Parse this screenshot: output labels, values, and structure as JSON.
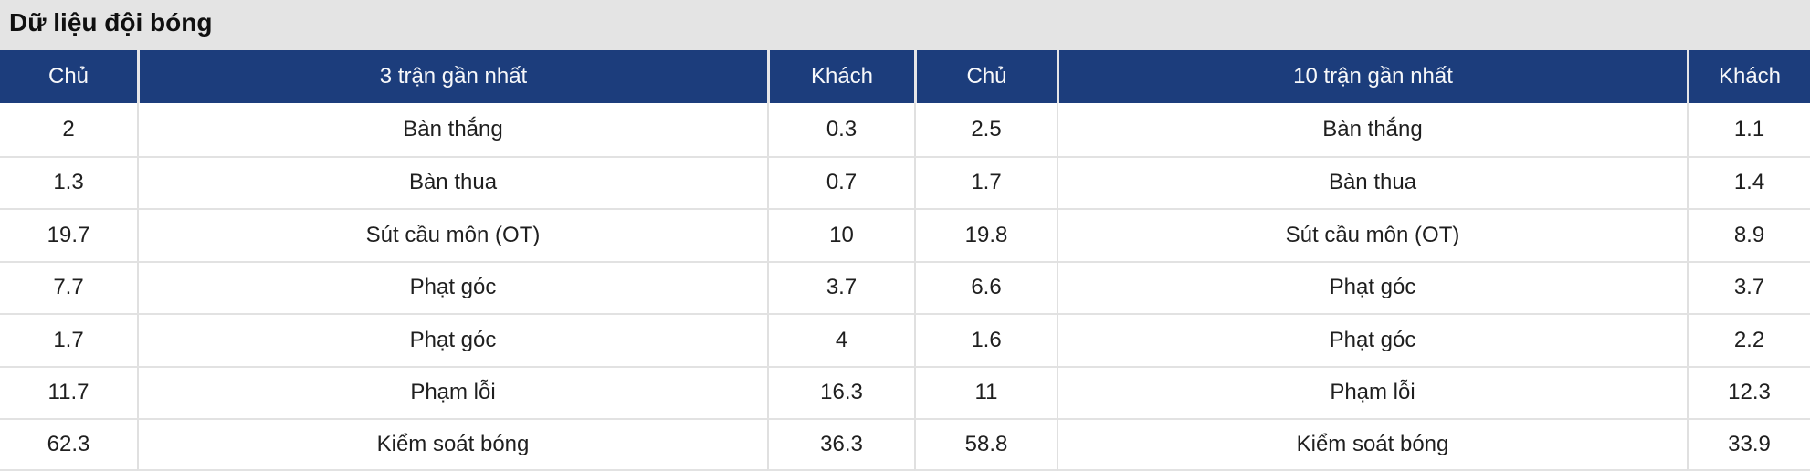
{
  "title": "Dữ liệu đội bóng",
  "colors": {
    "header_bg": "#1c3d7c",
    "header_text": "#ffffff",
    "title_bar_bg": "#e4e4e4",
    "border": "#e0e0e0",
    "body_text": "#1f1f1f"
  },
  "table": {
    "headers": [
      "Chủ",
      "3 trận gần nhất",
      "Khách",
      "Chủ",
      "10 trận gần nhất",
      "Khách"
    ],
    "rows": [
      [
        "2",
        "Bàn thắng",
        "0.3",
        "2.5",
        "Bàn thắng",
        "1.1"
      ],
      [
        "1.3",
        "Bàn thua",
        "0.7",
        "1.7",
        "Bàn thua",
        "1.4"
      ],
      [
        "19.7",
        "Sút cầu môn (OT)",
        "10",
        "19.8",
        "Sút cầu môn (OT)",
        "8.9"
      ],
      [
        "7.7",
        "Phạt góc",
        "3.7",
        "6.6",
        "Phạt góc",
        "3.7"
      ],
      [
        "1.7",
        "Phạt góc",
        "4",
        "1.6",
        "Phạt góc",
        "2.2"
      ],
      [
        "11.7",
        "Phạm lỗi",
        "16.3",
        "11",
        "Phạm lỗi",
        "12.3"
      ],
      [
        "62.3",
        "Kiểm soát bóng",
        "36.3",
        "58.8",
        "Kiểm soát bóng",
        "33.9"
      ]
    ]
  }
}
